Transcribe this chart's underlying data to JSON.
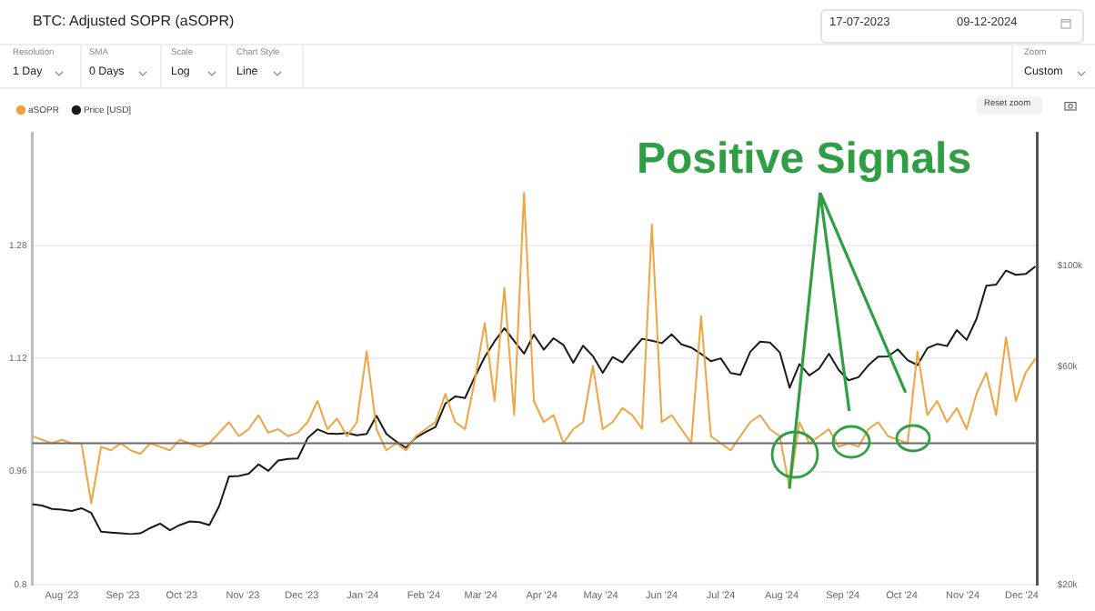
{
  "chart_data": {
    "type": "line",
    "title": "BTC: Adjusted SOPR (aSOPR)",
    "x": [
      "2023-07-17",
      "2023-07-22",
      "2023-07-27",
      "2023-08-01",
      "2023-08-06",
      "2023-08-11",
      "2023-08-16",
      "2023-08-21",
      "2023-08-26",
      "2023-08-31",
      "2023-09-05",
      "2023-09-10",
      "2023-09-15",
      "2023-09-20",
      "2023-09-25",
      "2023-09-30",
      "2023-10-05",
      "2023-10-10",
      "2023-10-15",
      "2023-10-20",
      "2023-10-25",
      "2023-10-30",
      "2023-11-04",
      "2023-11-09",
      "2023-11-14",
      "2023-11-19",
      "2023-11-24",
      "2023-11-29",
      "2023-12-04",
      "2023-12-09",
      "2023-12-14",
      "2023-12-19",
      "2023-12-24",
      "2023-12-29",
      "2024-01-03",
      "2024-01-08",
      "2024-01-13",
      "2024-01-18",
      "2024-01-23",
      "2024-01-28",
      "2024-02-02",
      "2024-02-07",
      "2024-02-12",
      "2024-02-17",
      "2024-02-22",
      "2024-02-27",
      "2024-03-03",
      "2024-03-08",
      "2024-03-13",
      "2024-03-18",
      "2024-03-23",
      "2024-03-28",
      "2024-04-02",
      "2024-04-07",
      "2024-04-12",
      "2024-04-17",
      "2024-04-22",
      "2024-04-27",
      "2024-05-02",
      "2024-05-07",
      "2024-05-12",
      "2024-05-17",
      "2024-05-22",
      "2024-05-27",
      "2024-06-01",
      "2024-06-06",
      "2024-06-11",
      "2024-06-16",
      "2024-06-21",
      "2024-06-26",
      "2024-07-01",
      "2024-07-06",
      "2024-07-11",
      "2024-07-16",
      "2024-07-21",
      "2024-07-26",
      "2024-07-31",
      "2024-08-05",
      "2024-08-10",
      "2024-08-15",
      "2024-08-20",
      "2024-08-25",
      "2024-08-30",
      "2024-09-04",
      "2024-09-09",
      "2024-09-14",
      "2024-09-19",
      "2024-09-24",
      "2024-09-29",
      "2024-10-04",
      "2024-10-09",
      "2024-10-14",
      "2024-10-19",
      "2024-10-24",
      "2024-10-29",
      "2024-11-03",
      "2024-11-08",
      "2024-11-13",
      "2024-11-18",
      "2024-11-23",
      "2024-11-28",
      "2024-12-03",
      "2024-12-08"
    ],
    "series": [
      {
        "name": "aSOPR",
        "color": "#efa43f",
        "values": [
          1.01,
          1.005,
          1.0,
          1.005,
          1.0,
          1.0,
          0.915,
          0.995,
          0.99,
          1.0,
          0.99,
          0.985,
          1.0,
          0.995,
          0.99,
          1.005,
          1.0,
          0.995,
          1.0,
          1.015,
          1.03,
          1.01,
          1.02,
          1.04,
          1.015,
          1.02,
          1.01,
          1.015,
          1.03,
          1.06,
          1.02,
          1.035,
          1.01,
          1.03,
          1.13,
          1.02,
          0.99,
          1.0,
          0.99,
          1.01,
          1.02,
          1.03,
          1.07,
          1.03,
          1.02,
          1.09,
          1.17,
          1.06,
          1.22,
          1.04,
          1.355,
          1.06,
          1.03,
          1.04,
          1.0,
          1.02,
          1.03,
          1.11,
          1.02,
          1.03,
          1.05,
          1.04,
          1.02,
          1.31,
          1.03,
          1.04,
          1.02,
          1.0,
          1.18,
          1.01,
          1.0,
          0.99,
          1.01,
          1.03,
          1.04,
          1.02,
          1.01,
          0.936,
          1.03,
          1.0,
          1.01,
          1.02,
          0.995,
          1.0,
          0.995,
          1.02,
          1.03,
          1.01,
          1.005,
          1.0,
          1.13,
          1.04,
          1.06,
          1.03,
          1.05,
          1.02,
          1.07,
          1.1,
          1.04,
          1.15,
          1.06,
          1.1,
          1.12
        ]
      },
      {
        "name": "Price [USD]",
        "color": "#1a1a1a",
        "axis": "y2",
        "values": [
          30000,
          29800,
          29300,
          29200,
          29000,
          29400,
          28700,
          26100,
          26000,
          25900,
          25800,
          25900,
          26600,
          27200,
          26300,
          27000,
          27500,
          27400,
          27000,
          29700,
          34500,
          34600,
          35000,
          36700,
          35500,
          37400,
          37700,
          37800,
          41900,
          43800,
          42900,
          42800,
          43000,
          42500,
          42800,
          46900,
          42800,
          41200,
          39900,
          42000,
          43200,
          44300,
          49900,
          51700,
          51300,
          57100,
          63100,
          68300,
          73000,
          68400,
          64200,
          70700,
          65500,
          69400,
          67100,
          61300,
          66800,
          63400,
          58300,
          63100,
          61400,
          65300,
          69200,
          68500,
          67700,
          70800,
          67300,
          66200,
          64100,
          61800,
          62700,
          58200,
          57700,
          64800,
          68200,
          67900,
          64600,
          54000,
          60900,
          57500,
          59500,
          64200,
          59100,
          56100,
          57000,
          60500,
          63200,
          63300,
          65600,
          62100,
          60600,
          66000,
          67400,
          66700,
          72300,
          68800,
          76500,
          90500,
          91000,
          97700,
          95600,
          96000,
          99800
        ]
      }
    ],
    "xlim": [
      "2023-07-17",
      "2024-12-09"
    ],
    "xticks": [
      {
        "value": "2023-08-01",
        "label": "Aug '23"
      },
      {
        "value": "2023-09-01",
        "label": "Sep '23"
      },
      {
        "value": "2023-10-01",
        "label": "Oct '23"
      },
      {
        "value": "2023-11-01",
        "label": "Nov '23"
      },
      {
        "value": "2023-12-01",
        "label": "Dec '23"
      },
      {
        "value": "2024-01-01",
        "label": "Jan '24"
      },
      {
        "value": "2024-02-01",
        "label": "Feb '24"
      },
      {
        "value": "2024-03-01",
        "label": "Mar '24"
      },
      {
        "value": "2024-04-01",
        "label": "Apr '24"
      },
      {
        "value": "2024-05-01",
        "label": "May '24"
      },
      {
        "value": "2024-06-01",
        "label": "Jun '24"
      },
      {
        "value": "2024-07-01",
        "label": "Jul '24"
      },
      {
        "value": "2024-08-01",
        "label": "Aug '24"
      },
      {
        "value": "2024-09-01",
        "label": "Sep '24"
      },
      {
        "value": "2024-10-01",
        "label": "Oct '24"
      },
      {
        "value": "2024-11-01",
        "label": "Nov '24"
      },
      {
        "value": "2024-12-01",
        "label": "Dec '24"
      }
    ],
    "ylim": [
      0.8,
      1.44
    ],
    "yticks": [
      0.8,
      0.96,
      1.12,
      1.28
    ],
    "y2lim": [
      20000,
      196000
    ],
    "y2ticks": [
      {
        "value": 20000,
        "label": "$20k"
      },
      {
        "value": 60000,
        "label": "$60k"
      },
      {
        "value": 100000,
        "label": "$100k"
      }
    ],
    "log": "y2",
    "ref_lines": [
      {
        "axis": "y",
        "value": 1,
        "color": "#6b6b6b"
      }
    ],
    "grid": "y",
    "legend": "top left",
    "marker": "none",
    "line_style": "solid",
    "annotations": [
      {
        "text": "Positive Signals",
        "x": "2024-08-05",
        "y": 0.936
      },
      "17-07-2023",
      "09-12-2024",
      "Resolution",
      "1 Day",
      "SMA",
      "0 Days",
      "Scale",
      "Log",
      "Chart Style",
      "Line",
      "Zoom",
      "Custom",
      "Reset zoom"
    ]
  }
}
